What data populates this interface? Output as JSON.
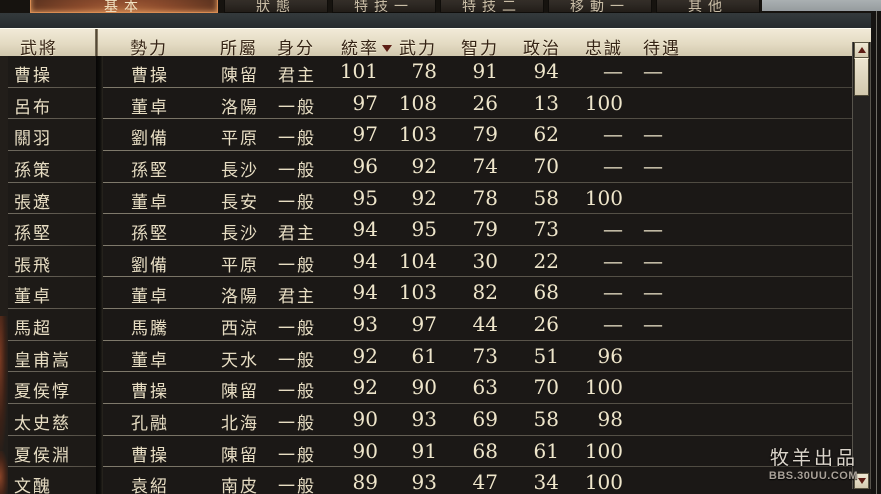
{
  "tabs": [
    {
      "label": "基本",
      "selected": true,
      "note": "partially cropped at top of window"
    },
    {
      "label": "狀態",
      "selected": false
    },
    {
      "label": "特技一",
      "selected": false
    },
    {
      "label": "特技二",
      "selected": false
    },
    {
      "label": "移動一",
      "selected": false
    },
    {
      "label": "其他",
      "selected": false
    }
  ],
  "table": {
    "headers": [
      "武將",
      "勢力",
      "所屬",
      "身分",
      "統率",
      "武力",
      "智力",
      "政治",
      "忠誠",
      "待遇"
    ],
    "sort": {
      "column": "統率",
      "direction": "desc"
    },
    "rows": [
      {
        "name": "曹操",
        "force": "曹操",
        "city": "陳留",
        "rank": "君主",
        "lead": "101",
        "war": "78",
        "int": "91",
        "pol": "94",
        "loyalty": "—",
        "treatment": "—"
      },
      {
        "name": "呂布",
        "force": "董卓",
        "city": "洛陽",
        "rank": "一般",
        "lead": "97",
        "war": "108",
        "int": "26",
        "pol": "13",
        "loyalty": "100",
        "treatment": ""
      },
      {
        "name": "關羽",
        "force": "劉備",
        "city": "平原",
        "rank": "一般",
        "lead": "97",
        "war": "103",
        "int": "79",
        "pol": "62",
        "loyalty": "—",
        "treatment": "—"
      },
      {
        "name": "孫策",
        "force": "孫堅",
        "city": "長沙",
        "rank": "一般",
        "lead": "96",
        "war": "92",
        "int": "74",
        "pol": "70",
        "loyalty": "—",
        "treatment": "—"
      },
      {
        "name": "張遼",
        "force": "董卓",
        "city": "長安",
        "rank": "一般",
        "lead": "95",
        "war": "92",
        "int": "78",
        "pol": "58",
        "loyalty": "100",
        "treatment": ""
      },
      {
        "name": "孫堅",
        "force": "孫堅",
        "city": "長沙",
        "rank": "君主",
        "lead": "94",
        "war": "95",
        "int": "79",
        "pol": "73",
        "loyalty": "—",
        "treatment": "—"
      },
      {
        "name": "張飛",
        "force": "劉備",
        "city": "平原",
        "rank": "一般",
        "lead": "94",
        "war": "104",
        "int": "30",
        "pol": "22",
        "loyalty": "—",
        "treatment": "—"
      },
      {
        "name": "董卓",
        "force": "董卓",
        "city": "洛陽",
        "rank": "君主",
        "lead": "94",
        "war": "103",
        "int": "82",
        "pol": "68",
        "loyalty": "—",
        "treatment": "—"
      },
      {
        "name": "馬超",
        "force": "馬騰",
        "city": "西涼",
        "rank": "一般",
        "lead": "93",
        "war": "97",
        "int": "44",
        "pol": "26",
        "loyalty": "—",
        "treatment": "—"
      },
      {
        "name": "皇甫嵩",
        "force": "董卓",
        "city": "天水",
        "rank": "一般",
        "lead": "92",
        "war": "61",
        "int": "73",
        "pol": "51",
        "loyalty": "96",
        "treatment": ""
      },
      {
        "name": "夏侯惇",
        "force": "曹操",
        "city": "陳留",
        "rank": "一般",
        "lead": "92",
        "war": "90",
        "int": "63",
        "pol": "70",
        "loyalty": "100",
        "treatment": ""
      },
      {
        "name": "太史慈",
        "force": "孔融",
        "city": "北海",
        "rank": "一般",
        "lead": "90",
        "war": "93",
        "int": "69",
        "pol": "58",
        "loyalty": "98",
        "treatment": ""
      },
      {
        "name": "夏侯淵",
        "force": "曹操",
        "city": "陳留",
        "rank": "一般",
        "lead": "90",
        "war": "91",
        "int": "68",
        "pol": "61",
        "loyalty": "100",
        "treatment": ""
      },
      {
        "name": "文醜",
        "force": "袁紹",
        "city": "南皮",
        "rank": "一般",
        "lead": "89",
        "war": "93",
        "int": "47",
        "pol": "34",
        "loyalty": "100",
        "treatment": ""
      }
    ]
  },
  "scrollbar": {
    "up_icon": "triangle-up",
    "down_icon": "triangle-down",
    "thumb_position": "top"
  },
  "watermark": {
    "line1": "牧羊出品",
    "line2": "BBS.30UU.COM"
  },
  "colors": {
    "selected_tab": "#8a4a2c",
    "header_bg": "#e3dac2",
    "header_text": "#342315",
    "body_bg": "#1b1816",
    "body_text": "#e7ddc3",
    "sort_arrow": "#5d1f15",
    "scroll_button_bg": "#ddd4bb"
  }
}
